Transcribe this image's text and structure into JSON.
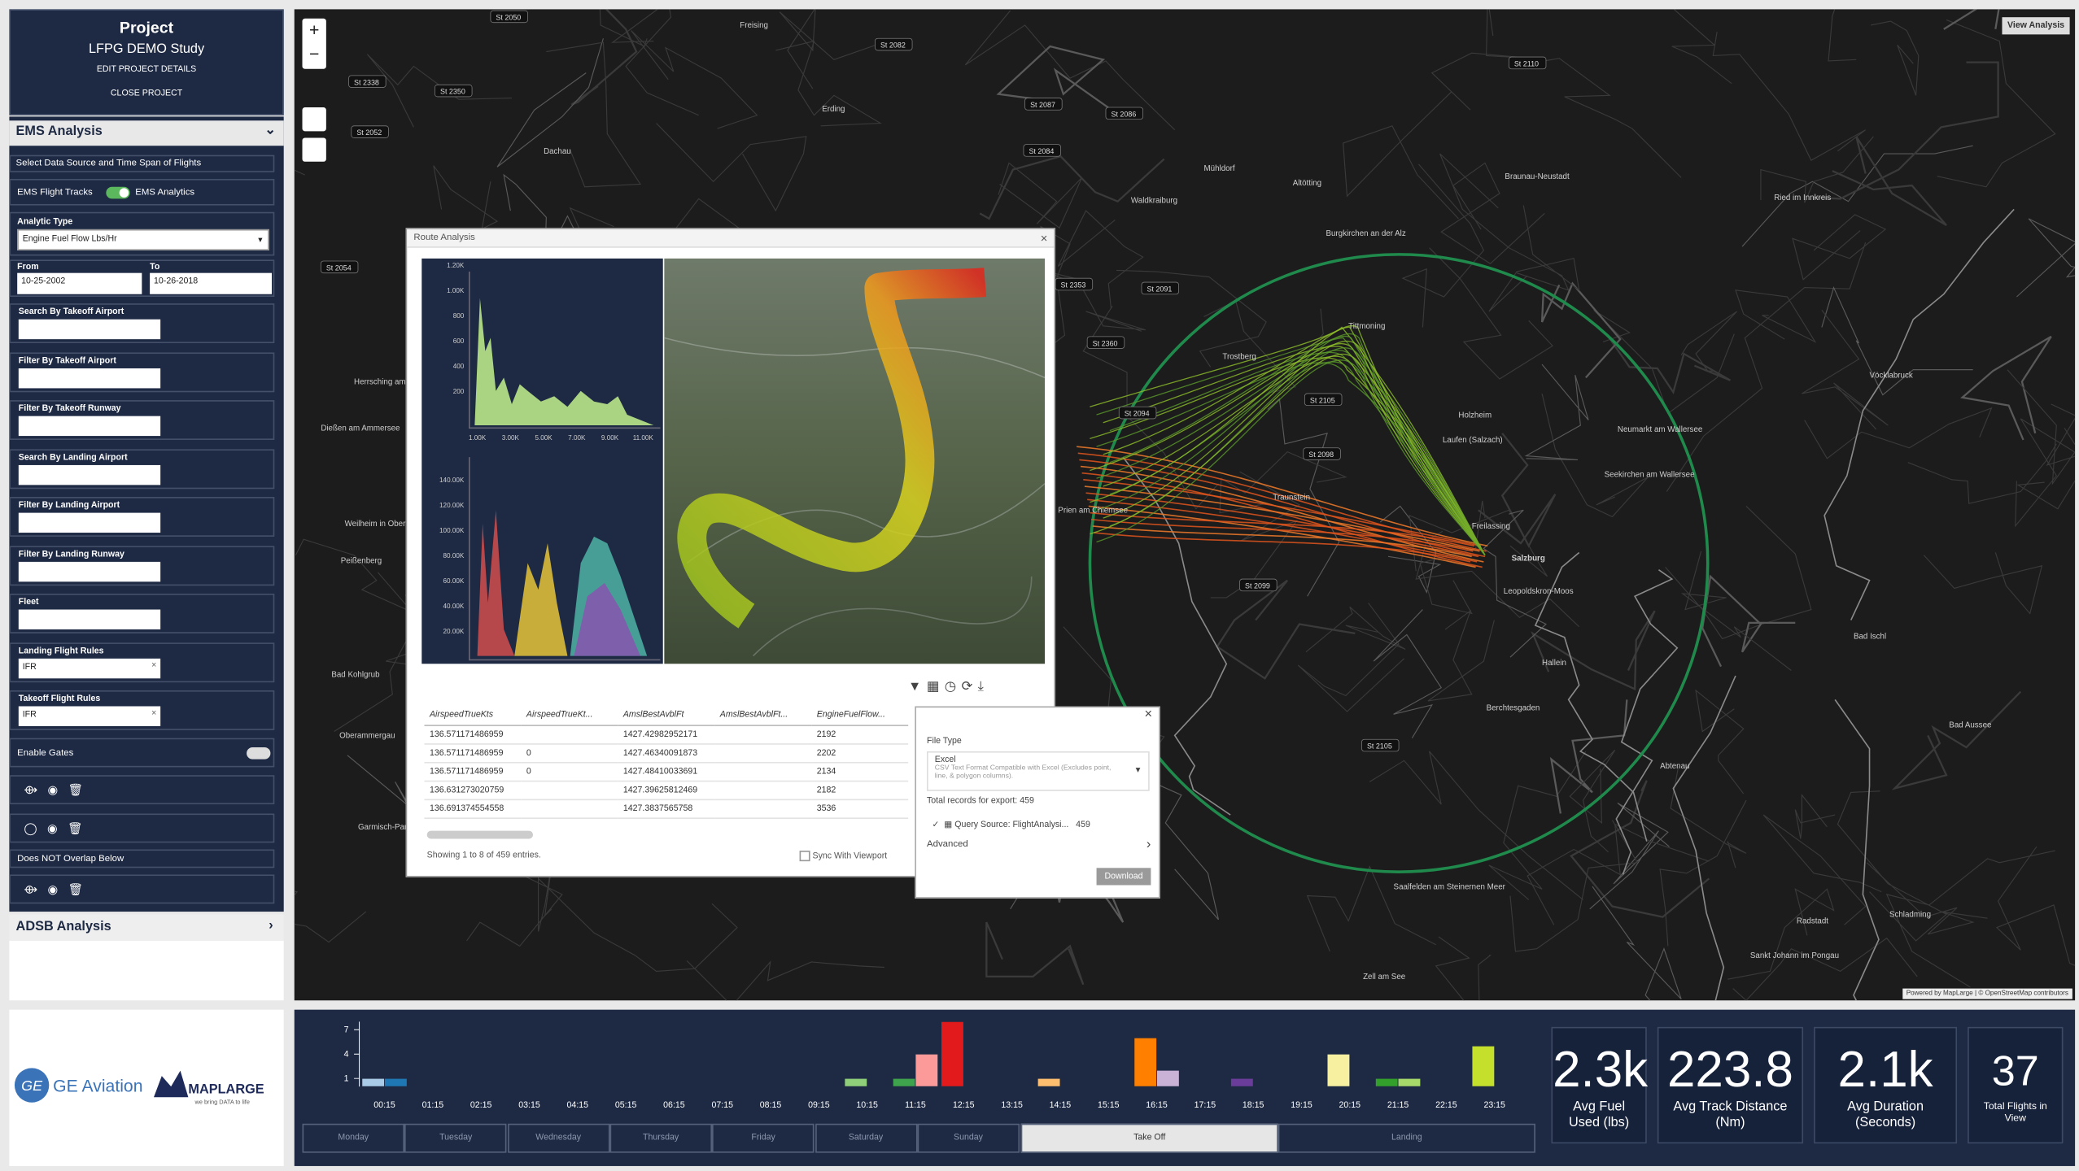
{
  "sidebar": {
    "project": {
      "title": "Project",
      "name": "LFPG DEMO Study",
      "edit": "EDIT PROJECT DETAILS",
      "close": "CLOSE PROJECT"
    },
    "ems_title": "EMS Analysis",
    "data_source": "Select Data Source and Time Span of Flights",
    "toggle_left": "EMS Flight Tracks",
    "toggle_right": "EMS Analytics",
    "analytic_type_label": "Analytic Type",
    "analytic_type": "Engine Fuel Flow Lbs/Hr",
    "from_label": "From",
    "from": "10-25-2002",
    "to_label": "To",
    "to": "10-26-2018",
    "fields": [
      {
        "label": "Search By Takeoff Airport"
      },
      {
        "label": "Filter By Takeoff Airport"
      },
      {
        "label": "Filter By Takeoff Runway"
      },
      {
        "label": "Search By Landing Airport"
      },
      {
        "label": "Filter By Landing Airport"
      },
      {
        "label": "Filter By Landing Runway"
      },
      {
        "label": "Fleet"
      },
      {
        "label": "Landing Flight Rules",
        "value": "IFR"
      },
      {
        "label": "Takeoff Flight Rules",
        "value": "IFR"
      }
    ],
    "enable_gates": "Enable Gates",
    "overlap": "Does NOT Overlap Below",
    "adsb_title": "ADSB Analysis"
  },
  "map": {
    "view_analysis": "View Analysis",
    "attribution": "Powered by MapLarge | © OpenStreetMap contributors",
    "places": [
      "Salzburg",
      "Freilassing",
      "Laufen (Salzach)",
      "Tittmoning",
      "Trostberg",
      "Traunstein",
      "Holzheim",
      "Berchtesgaden",
      "Hallein",
      "Neumarkt am Wallersee",
      "Seekirchen am Wallersee",
      "Vöcklabruck",
      "Ried im Innkreis",
      "Braunau-Neustadt",
      "Burgkirchen an der Alz",
      "Waldkraiburg",
      "Mühldorf",
      "Altötting",
      "Garmisch-Partenkirchen",
      "Weilheim in Oberbayern",
      "Peißenberg",
      "Dießen am Ammersee",
      "Herrsching am Ammersee",
      "Oberammergau",
      "Bad Kohlgrub",
      "Dachau",
      "Erding",
      "Freising",
      "Bad Ischl",
      "Bad Aussee",
      "Schladming",
      "Radstadt",
      "Saalfelden am Steinernen Meer",
      "Zell am See",
      "Sankt Johann im Pongau",
      "Prien am Chiemsee",
      "Leopoldskron-Moos",
      "Abtenau"
    ],
    "shields": [
      "St 2050",
      "St 2082",
      "St 2350",
      "St 2087",
      "St 2086",
      "St 2084",
      "St 2110",
      "St 2338",
      "St 2052",
      "St 2054",
      "St 2353",
      "St 2091",
      "St 2360",
      "St 2094",
      "St 2105",
      "St 2098",
      "St 2099",
      "St 2105"
    ]
  },
  "route_analysis": {
    "title": "Route Analysis",
    "chart1": {
      "yticks": [
        "1.20K",
        "1.00K",
        "800",
        "600",
        "400",
        "200"
      ],
      "xticks": [
        "1.00K",
        "3.00K",
        "5.00K",
        "7.00K",
        "9.00K",
        "11.00K"
      ]
    },
    "chart2": {
      "yticks": [
        "140.00K",
        "120.00K",
        "100.00K",
        "80.00K",
        "60.00K",
        "40.00K",
        "20.00K"
      ]
    },
    "table": {
      "headers": [
        "AirspeedTrueKts",
        "AirspeedTrueKt...",
        "AmslBestAvblFt",
        "AmslBestAvblFt...",
        "EngineFuelFlow..."
      ],
      "rows": [
        [
          "136.571171486959",
          null,
          "1427.42982952171",
          null,
          "2192"
        ],
        [
          "136.571171486959",
          "0",
          "1427.46340091873",
          null,
          "2202"
        ],
        [
          "136.571171486959",
          "0",
          "1427.48410033691",
          null,
          "2134"
        ],
        [
          "136.631273020759",
          null,
          "1427.39625812469",
          null,
          "2182"
        ],
        [
          "136.691374554558",
          null,
          "1427.3837565758",
          null,
          "3536"
        ]
      ]
    },
    "footer": "Showing 1 to 8 of 459 entries.",
    "sync": "Sync With Viewport"
  },
  "export": {
    "file_type_label": "File Type",
    "file_type": "Excel",
    "file_type_desc": "CSV Text Format Compatible with Excel (Excludes point, line, & polygon columns).",
    "total": "Total records for export: 459",
    "query_source": "Query Source: FlightAnalysi...",
    "query_count": "459",
    "advanced": "Advanced",
    "download": "Download"
  },
  "timeline": {
    "ylim": [
      0,
      8
    ],
    "yticks": [
      1,
      4,
      7
    ],
    "categories": [
      "00:15",
      "01:15",
      "02:15",
      "03:15",
      "04:15",
      "05:15",
      "06:15",
      "07:15",
      "08:15",
      "09:15",
      "10:15",
      "11:15",
      "12:15",
      "13:15",
      "14:15",
      "15:15",
      "16:15",
      "17:15",
      "18:15",
      "19:15",
      "20:15",
      "21:15",
      "22:15",
      "23:15"
    ],
    "series": [
      {
        "values": [
          1,
          null,
          null,
          null,
          null,
          null,
          null,
          null,
          null,
          null,
          1,
          1,
          8,
          null,
          1,
          null,
          6,
          null,
          1,
          null,
          4,
          1,
          null,
          5
        ],
        "colors": [
          "#a9cbe8",
          null,
          null,
          null,
          null,
          null,
          null,
          null,
          null,
          null,
          "#8fcf7a",
          "#3fa34d",
          "#e31a1c",
          null,
          "#fdbf6f",
          null,
          "#ff7f00",
          null,
          "#6a3d9a",
          null,
          "#f6f0a0",
          "#33a02c",
          null,
          "#c4e02c"
        ]
      },
      {
        "values": [
          1,
          null,
          null,
          null,
          null,
          null,
          null,
          null,
          null,
          null,
          null,
          4,
          null,
          null,
          null,
          null,
          2,
          null,
          null,
          null,
          null,
          1,
          null,
          null
        ],
        "colors": [
          "#1f78b4",
          null,
          null,
          null,
          null,
          null,
          null,
          null,
          null,
          null,
          null,
          "#fb9a99",
          null,
          null,
          null,
          null,
          "#cab2d6",
          null,
          null,
          null,
          null,
          "#a6d96a",
          null,
          null
        ]
      }
    ]
  },
  "tabs": {
    "days": [
      "Monday",
      "Tuesday",
      "Wednesday",
      "Thursday",
      "Friday",
      "Saturday",
      "Sunday"
    ],
    "modes": [
      "Take Off",
      "Landing"
    ]
  },
  "stats": [
    {
      "value": "2.3k",
      "label": "Avg Fuel Used (lbs)"
    },
    {
      "value": "223.8",
      "label": "Avg Track Distance (Nm)"
    },
    {
      "value": "2.1k",
      "label": "Avg Duration (Seconds)"
    },
    {
      "value": "37",
      "label": "Total Flights in View"
    }
  ],
  "logos": {
    "ge": "GE Aviation",
    "maplarge": "MAPLARGE",
    "tagline": "we bring DATA to life"
  }
}
